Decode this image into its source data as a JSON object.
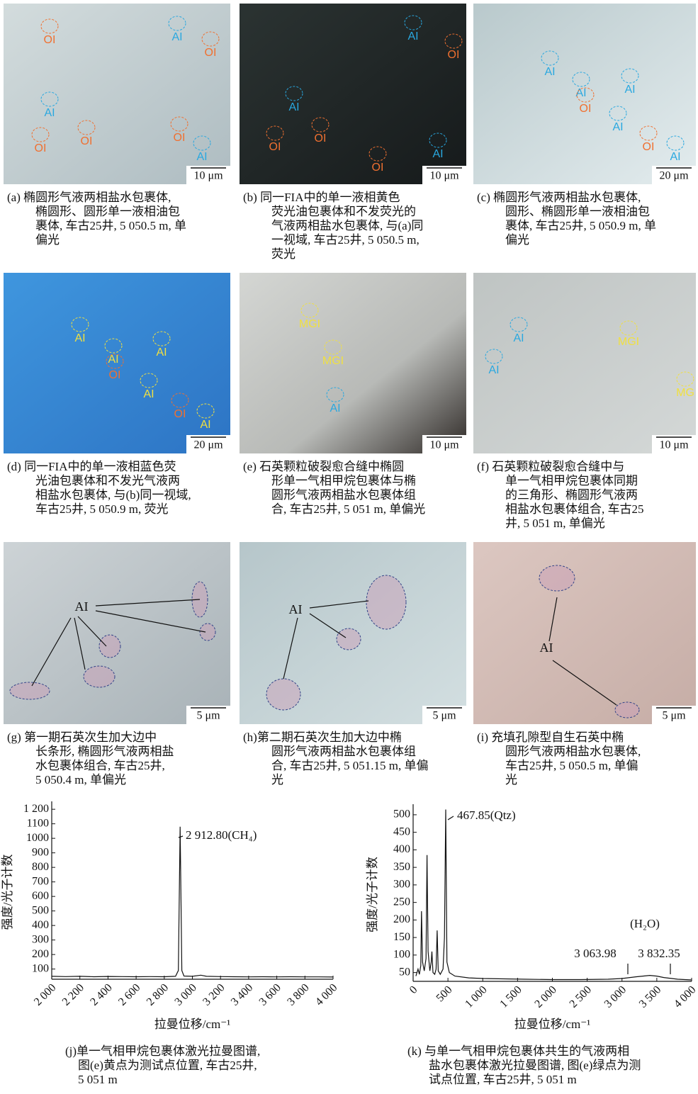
{
  "panels": [
    {
      "caption": [
        "(a) 椭圆形气液两相盐水包裹体,",
        "椭圆形、圆形单一液相油包",
        "裹体, 车古25井, 5 050.5 m, 单",
        "偏光"
      ],
      "scale": "10 μm",
      "labels": [
        {
          "text": "OI",
          "color": "#f07030"
        },
        {
          "text": "AI",
          "color": "#29a8e0"
        },
        {
          "text": "OI",
          "color": "#f07030"
        },
        {
          "text": "AI",
          "color": "#29a8e0"
        },
        {
          "text": "OI",
          "color": "#f07030"
        },
        {
          "text": "OI",
          "color": "#f07030"
        },
        {
          "text": "OI",
          "color": "#f07030"
        },
        {
          "text": "AI",
          "color": "#29a8e0"
        }
      ]
    },
    {
      "caption": [
        "(b) 同一FIA中的单一液相黄色",
        "荧光油包裹体和不发荧光的",
        "气液两相盐水包裹体, 与(a)同",
        "一视域, 车古25井, 5 050.5 m,",
        "荧光"
      ],
      "scale": "10 μm",
      "labels": [
        {
          "text": "AI",
          "color": "#29a8e0"
        },
        {
          "text": "OI",
          "color": "#f07030"
        },
        {
          "text": "AI",
          "color": "#29a8e0"
        },
        {
          "text": "OI",
          "color": "#f07030"
        },
        {
          "text": "OI",
          "color": "#f07030"
        },
        {
          "text": "OI",
          "color": "#f07030"
        },
        {
          "text": "AI",
          "color": "#29a8e0"
        }
      ]
    },
    {
      "caption": [
        "(c) 椭圆形气液两相盐水包裹体,",
        "圆形、椭圆形单一液相油包",
        "裹体, 车古25井, 5 050.9 m, 单",
        "偏光"
      ],
      "scale": "20 μm",
      "labels": [
        {
          "text": "AI",
          "color": "#29a8e0"
        },
        {
          "text": "AI",
          "color": "#29a8e0"
        },
        {
          "text": "AI",
          "color": "#29a8e0"
        },
        {
          "text": "OI",
          "color": "#f07030"
        },
        {
          "text": "AI",
          "color": "#29a8e0"
        },
        {
          "text": "OI",
          "color": "#f07030"
        },
        {
          "text": "AI",
          "color": "#29a8e0"
        }
      ]
    },
    {
      "caption": [
        "(d) 同一FIA中的单一液相蓝色荧",
        "光油包裹体和不发光气液两",
        "相盐水包裹体, 与(b)同一视域,",
        "车古25井, 5 050.9 m, 荧光"
      ],
      "scale": "20 μm",
      "labels": [
        {
          "text": "AI",
          "color": "#f0e040"
        },
        {
          "text": "AI",
          "color": "#f0e040"
        },
        {
          "text": "AI",
          "color": "#f0e040"
        },
        {
          "text": "OI",
          "color": "#f07030"
        },
        {
          "text": "AI",
          "color": "#f0e040"
        },
        {
          "text": "OI",
          "color": "#f07030"
        },
        {
          "text": "AI",
          "color": "#f0e040"
        }
      ]
    },
    {
      "caption": [
        "(e) 石英颗粒破裂愈合缝中椭圆",
        "形单一气相甲烷包裹体与椭",
        "圆形气液两相盐水包裹体组",
        "合, 车古25井, 5 051 m, 单偏光"
      ],
      "scale": "10 μm",
      "labels": [
        {
          "text": "MGI",
          "color": "#f0e040"
        },
        {
          "text": "MGI",
          "color": "#f0e040"
        },
        {
          "text": "AI",
          "color": "#29a8e0"
        }
      ]
    },
    {
      "caption": [
        "(f) 石英颗粒破裂愈合缝中与",
        "单一气相甲烷包裹体同期",
        "的三角形、椭圆形气液两",
        "相盐水包裹体组合, 车古25",
        "井, 5 051 m, 单偏光"
      ],
      "scale": "10 μm",
      "labels": [
        {
          "text": "AI",
          "color": "#29a8e0"
        },
        {
          "text": "AI",
          "color": "#29a8e0"
        },
        {
          "text": "MGI",
          "color": "#f0e040"
        },
        {
          "text": "MG",
          "color": "#f0e040"
        }
      ]
    },
    {
      "caption": [
        "(g) 第一期石英次生加大边中",
        "长条形, 椭圆形气液两相盐",
        "水包裹体组合, 车古25井,",
        "5 050.4 m, 单偏光"
      ],
      "scale": "5 μm",
      "labels": [
        {
          "text": "AI",
          "color": "#111111"
        }
      ]
    },
    {
      "caption": [
        "(h)第二期石英次生加大边中椭",
        "圆形气液两相盐水包裹体组",
        "合, 车古25井, 5 051.15 m, 单偏",
        "光"
      ],
      "scale": "5 μm",
      "labels": [
        {
          "text": "AI",
          "color": "#111111"
        }
      ]
    },
    {
      "caption": [
        "(i) 充填孔隙型自生石英中椭",
        "圆形气液两相盐水包裹体,",
        "车古25井, 5 050.5 m, 单偏",
        "光"
      ],
      "scale": "5 μm",
      "labels": [
        {
          "text": "AI",
          "color": "#111111"
        }
      ]
    }
  ],
  "chart_data": [
    {
      "type": "line",
      "x_label": "拉曼位移/cm⁻¹",
      "y_label": "强度/光子计数",
      "color": "#111111",
      "annotations": [
        "2 912.80(CH₄)"
      ],
      "caption": [
        "(j)单一气相甲烷包裹体激光拉曼图谱,",
        "图(e)黄点为测试点位置, 车古25井,",
        "5 051 m"
      ],
      "x": [
        2000,
        2100,
        2200,
        2300,
        2400,
        2500,
        2600,
        2700,
        2800,
        2880,
        2900,
        2912.8,
        2925,
        2940,
        3000,
        3060,
        3100,
        3200,
        3300,
        3400,
        3500,
        3600,
        3700,
        3800,
        3900,
        4000
      ],
      "values": [
        50,
        48,
        50,
        47,
        49,
        48,
        47,
        48,
        47,
        50,
        90,
        1080,
        90,
        52,
        50,
        58,
        50,
        48,
        47,
        46,
        47,
        46,
        47,
        46,
        46,
        45
      ],
      "xlim": [
        2000,
        4000
      ],
      "ylim": [
        30,
        1230
      ],
      "xticks": [
        {
          "value": 2000,
          "label": "2 000"
        },
        {
          "value": 2200,
          "label": "2 200"
        },
        {
          "value": 2400,
          "label": "2 400"
        },
        {
          "value": 2600,
          "label": "2 600"
        },
        {
          "value": 2800,
          "label": "2 800"
        },
        {
          "value": 3000,
          "label": "3 000"
        },
        {
          "value": 3200,
          "label": "3 200"
        },
        {
          "value": 3400,
          "label": "3 400"
        },
        {
          "value": 3600,
          "label": "3 600"
        },
        {
          "value": 3800,
          "label": "3 800"
        },
        {
          "value": 4000,
          "label": "4 000"
        }
      ],
      "yticks": [
        100,
        200,
        300,
        400,
        500,
        600,
        700,
        800,
        900,
        1000,
        1100,
        {
          "value": 1200,
          "label": "1 200"
        }
      ]
    },
    {
      "type": "line",
      "x_label": "拉曼位移/cm⁻¹",
      "y_label": "强度/光子计数",
      "color": "#111111",
      "annotations": [
        "467.85(Qtz)",
        "(H₂O)",
        "3 063.98",
        "3 832.35"
      ],
      "caption": [
        "(k) 与单一气相甲烷包裹体共生的气液两相",
        "盐水包裹体激光拉曼图谱, 图(e)绿点为测",
        "试点位置, 车古25井, 5 051 m"
      ],
      "x": [
        40,
        70,
        90,
        110,
        120,
        135,
        160,
        185,
        200,
        215,
        240,
        260,
        270,
        285,
        310,
        330,
        345,
        360,
        390,
        430,
        450,
        467.85,
        485,
        520,
        600,
        800,
        1000,
        1300,
        1600,
        2000,
        2400,
        2800,
        3000,
        3200,
        3400,
        3500,
        3600,
        3800,
        4000
      ],
      "values": [
        40,
        60,
        45,
        70,
        225,
        80,
        55,
        90,
        385,
        110,
        55,
        80,
        110,
        50,
        45,
        60,
        170,
        55,
        45,
        60,
        150,
        515,
        80,
        50,
        40,
        35,
        33,
        32,
        31,
        30,
        30,
        31,
        33,
        38,
        42,
        40,
        36,
        31,
        29
      ],
      "xlim": [
        0,
        4000
      ],
      "ylim": [
        25,
        520
      ],
      "xticks": [
        0,
        500,
        {
          "value": 1000,
          "label": "1 000"
        },
        {
          "value": 1500,
          "label": "1 500"
        },
        {
          "value": 2000,
          "label": "2 000"
        },
        {
          "value": 2500,
          "label": "2 500"
        },
        {
          "value": 3000,
          "label": "3 000"
        },
        {
          "value": 3500,
          "label": "3 500"
        },
        {
          "value": 4000,
          "label": "4 000"
        }
      ],
      "yticks": [
        50,
        100,
        150,
        200,
        250,
        300,
        350,
        400,
        450,
        500
      ]
    }
  ]
}
